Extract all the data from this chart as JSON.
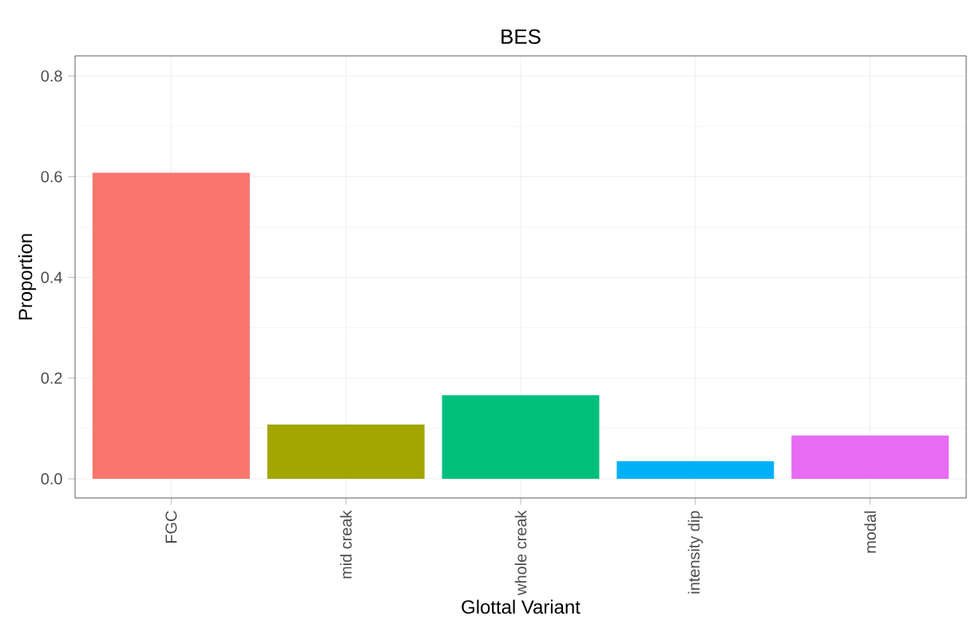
{
  "chart_data": {
    "type": "bar",
    "title": "BES",
    "xlabel": "Glottal Variant",
    "ylabel": "Proportion",
    "categories": [
      "FGC",
      "mid creak",
      "whole creak",
      "intensity dip",
      "modal"
    ],
    "values": [
      0.608,
      0.108,
      0.166,
      0.035,
      0.086
    ],
    "colors": [
      "#f8766d",
      "#a3a500",
      "#00bf7d",
      "#00b0f6",
      "#e76bf3"
    ],
    "ylim": [
      -0.038,
      0.84
    ],
    "yticks": [
      {
        "value": 0,
        "label": "0.0"
      },
      0.2,
      0.4,
      0.6,
      0.8
    ],
    "grid": true
  }
}
